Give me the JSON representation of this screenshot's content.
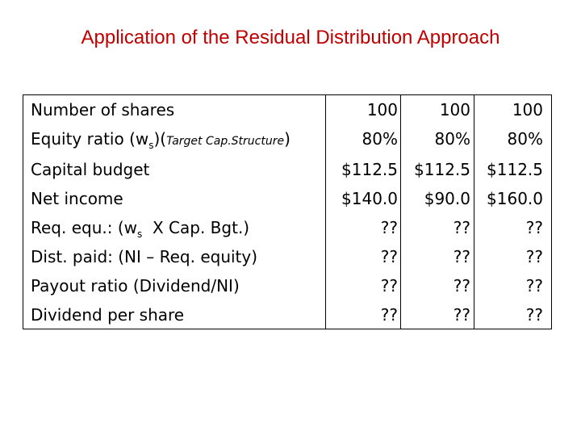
{
  "title": "Application of the Residual Distribution Approach",
  "columns": [
    "",
    "",
    ""
  ],
  "rows": [
    {
      "label": "Number of shares",
      "values": [
        "100",
        "100",
        "100"
      ]
    },
    {
      "label_parts": {
        "pre": "Equity ratio (w",
        "sub": "s",
        "mid": ")(",
        "small": "Target Cap.Structure",
        "post": ")"
      },
      "values": [
        "80%",
        "80%",
        "80%"
      ]
    },
    {
      "label": "Capital budget",
      "values": [
        "$112.5",
        "$112.5",
        "$112.5"
      ]
    },
    {
      "label": "Net income",
      "values": [
        "$140.0",
        "$90.0",
        "$160.0"
      ]
    },
    {
      "label_parts": {
        "pre": "Req. equ.: (w",
        "sub": "s",
        "post": "  X Cap. Bgt.)"
      },
      "values": [
        "??",
        "??",
        "??"
      ]
    },
    {
      "label": "Dist. paid: (NI – Req. equity)",
      "values": [
        "??",
        "??",
        "??"
      ]
    },
    {
      "label": "Payout ratio (Dividend/NI)",
      "values": [
        "??",
        "??",
        "??"
      ]
    },
    {
      "label": "Dividend per share",
      "values": [
        "??",
        "??",
        "??"
      ]
    }
  ]
}
